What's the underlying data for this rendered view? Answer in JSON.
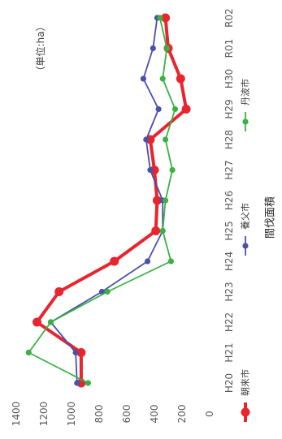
{
  "chart_data": {
    "type": "line",
    "title": "間伐面積",
    "unit_label": "（単位:ha）",
    "categories": [
      "H20",
      "H21",
      "H22",
      "H23",
      "H24",
      "H25",
      "H26",
      "H27",
      "H28",
      "H29",
      "H30",
      "R01",
      "R02"
    ],
    "y_ticks": [
      0,
      200,
      400,
      600,
      800,
      1000,
      1200,
      1400
    ],
    "ylim": [
      0,
      1400
    ],
    "grid": false,
    "legend": "bottom",
    "series": [
      {
        "name": "朝来市",
        "color": "#e8252e",
        "values": [
          930,
          930,
          1250,
          1090,
          690,
          390,
          380,
          400,
          430,
          170,
          210,
          300,
          320
        ]
      },
      {
        "name": "養父市",
        "color": "#4a51a8",
        "values": [
          960,
          970,
          1150,
          780,
          450,
          340,
          340,
          430,
          460,
          370,
          480,
          410,
          380
        ]
      },
      {
        "name": "丹波市",
        "color": "#3bb143",
        "values": [
          880,
          1310,
          1150,
          740,
          280,
          340,
          320,
          270,
          320,
          250,
          340,
          310,
          360
        ]
      }
    ]
  }
}
